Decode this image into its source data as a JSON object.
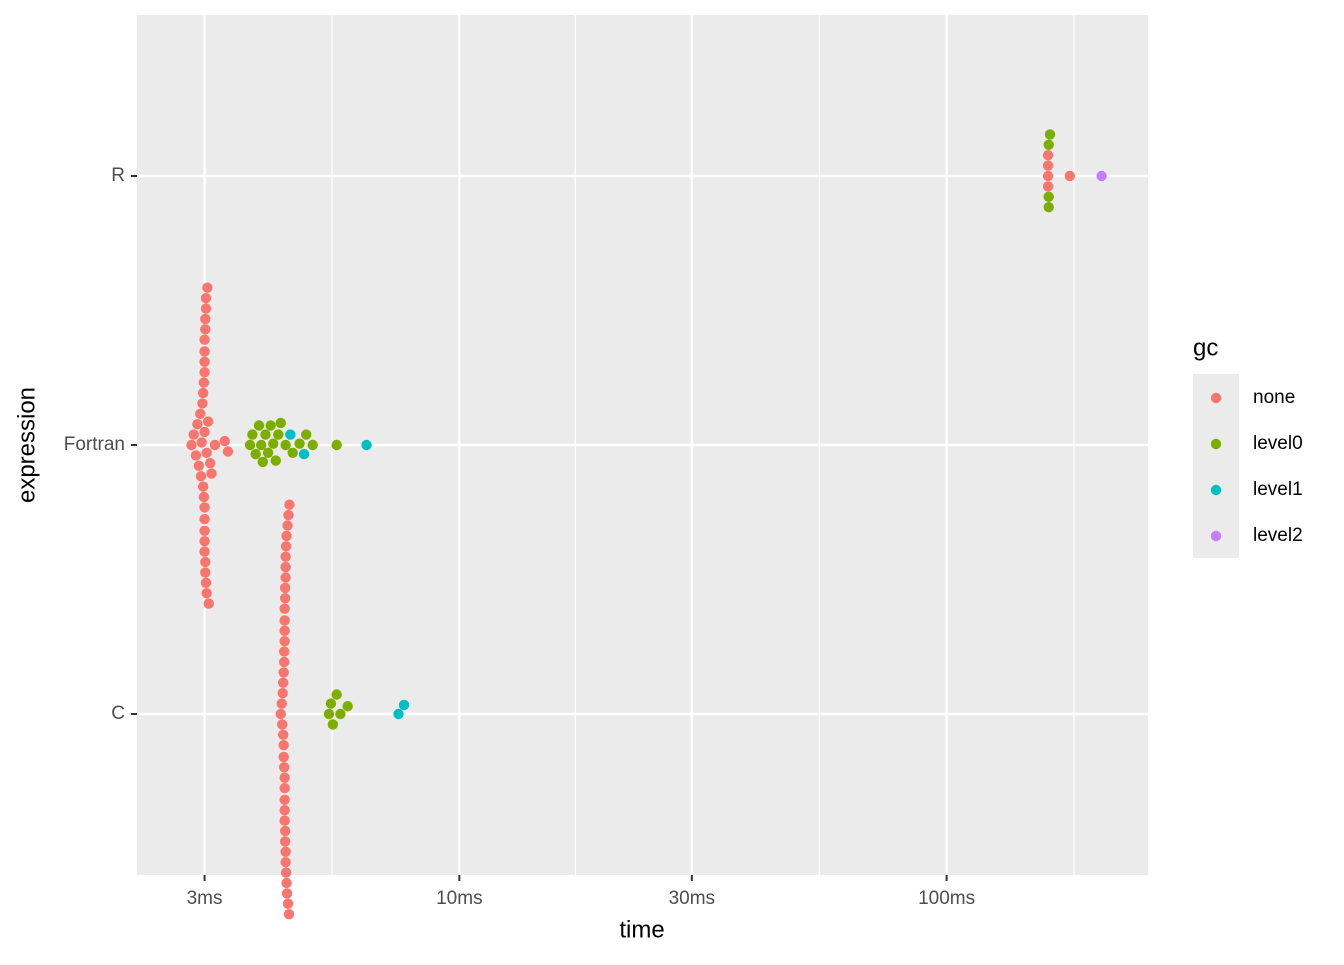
{
  "chart_data": {
    "type": "scatter",
    "x_label": "time",
    "y_label": "expression",
    "categories": [
      "C",
      "Fortran",
      "R"
    ],
    "log_x": true,
    "grid": true,
    "xlim": [
      2.18,
      259
    ],
    "xticks": [
      {
        "value": 3,
        "label": "3ms"
      },
      {
        "value": 10,
        "label": "10ms"
      },
      {
        "value": 30,
        "label": "30ms"
      },
      {
        "value": 100,
        "label": "100ms"
      }
    ],
    "xminorticks": [
      5.48,
      17.3,
      54.8,
      182.6
    ],
    "legend_title": "gc",
    "legend": "right",
    "series": [
      {
        "name": "none",
        "color": "#F8766D",
        "x": [
          2.82,
          2.85,
          2.88,
          2.9,
          2.92,
          2.94,
          2.95,
          2.96,
          2.97,
          2.98,
          2.98,
          2.99,
          2.99,
          3.0,
          3.0,
          3.0,
          3.0,
          3.0,
          3.0,
          3.0,
          3.0,
          3.0,
          3.0,
          3.01,
          3.01,
          3.01,
          3.01,
          3.02,
          3.02,
          3.02,
          3.03,
          3.03,
          3.04,
          3.05,
          3.06,
          3.08,
          3.1,
          3.15,
          3.3,
          3.35,
          4.3,
          4.32,
          4.33,
          4.34,
          4.35,
          4.35,
          4.36,
          4.36,
          4.36,
          4.37,
          4.37,
          4.37,
          4.38,
          4.38,
          4.38,
          4.38,
          4.38,
          4.38,
          4.38,
          4.38,
          4.38,
          4.39,
          4.39,
          4.39,
          4.39,
          4.4,
          4.4,
          4.4,
          4.4,
          4.4,
          4.41,
          4.41,
          4.42,
          4.42,
          4.43,
          4.44,
          4.45,
          4.46,
          4.47,
          4.48,
          161.5,
          161.5,
          161.5,
          161.5,
          179
        ],
        "values": [
          "Fortran",
          "Fortran",
          "Fortran",
          "Fortran",
          "Fortran",
          "Fortran",
          "Fortran",
          "Fortran",
          "Fortran",
          "Fortran",
          "Fortran",
          "Fortran",
          "Fortran",
          "Fortran",
          "Fortran",
          "Fortran",
          "Fortran",
          "Fortran",
          "Fortran",
          "Fortran",
          "Fortran",
          "Fortran",
          "Fortran",
          "Fortran",
          "Fortran",
          "Fortran",
          "Fortran",
          "Fortran",
          "Fortran",
          "Fortran",
          "Fortran",
          "Fortran",
          "Fortran",
          "Fortran",
          "Fortran",
          "Fortran",
          "Fortran",
          "Fortran",
          "Fortran",
          "Fortran",
          "C",
          "C",
          "C",
          "C",
          "C",
          "C",
          "C",
          "C",
          "C",
          "C",
          "C",
          "C",
          "C",
          "C",
          "C",
          "C",
          "C",
          "C",
          "C",
          "C",
          "C",
          "C",
          "C",
          "C",
          "C",
          "C",
          "C",
          "C",
          "C",
          "C",
          "C",
          "C",
          "C",
          "C",
          "C",
          "C",
          "C",
          "C",
          "C",
          "C",
          "R",
          "R",
          "R",
          "R",
          "R"
        ]
      },
      {
        "name": "level0",
        "color": "#7CAE00",
        "x": [
          3.72,
          3.76,
          3.82,
          3.88,
          3.92,
          3.95,
          4.0,
          4.05,
          4.1,
          4.15,
          4.2,
          4.25,
          4.3,
          4.4,
          4.55,
          4.7,
          4.85,
          5.0,
          5.6,
          5.4,
          5.45,
          5.5,
          5.6,
          5.7,
          5.9,
          162,
          162,
          162,
          163
        ],
        "values": [
          "Fortran",
          "Fortran",
          "Fortran",
          "Fortran",
          "Fortran",
          "Fortran",
          "Fortran",
          "Fortran",
          "Fortran",
          "Fortran",
          "Fortran",
          "Fortran",
          "Fortran",
          "Fortran",
          "Fortran",
          "Fortran",
          "Fortran",
          "Fortran",
          "Fortran",
          "C",
          "C",
          "C",
          "C",
          "C",
          "C",
          "R",
          "R",
          "R",
          "R"
        ]
      },
      {
        "name": "level1",
        "color": "#00BFC4",
        "x": [
          4.5,
          4.8,
          6.45,
          7.5,
          7.7
        ],
        "values": [
          "Fortran",
          "Fortran",
          "Fortran",
          "C",
          "C"
        ]
      },
      {
        "name": "level2",
        "color": "#C77CFF",
        "x": [
          208
        ],
        "values": [
          "R"
        ]
      }
    ]
  }
}
